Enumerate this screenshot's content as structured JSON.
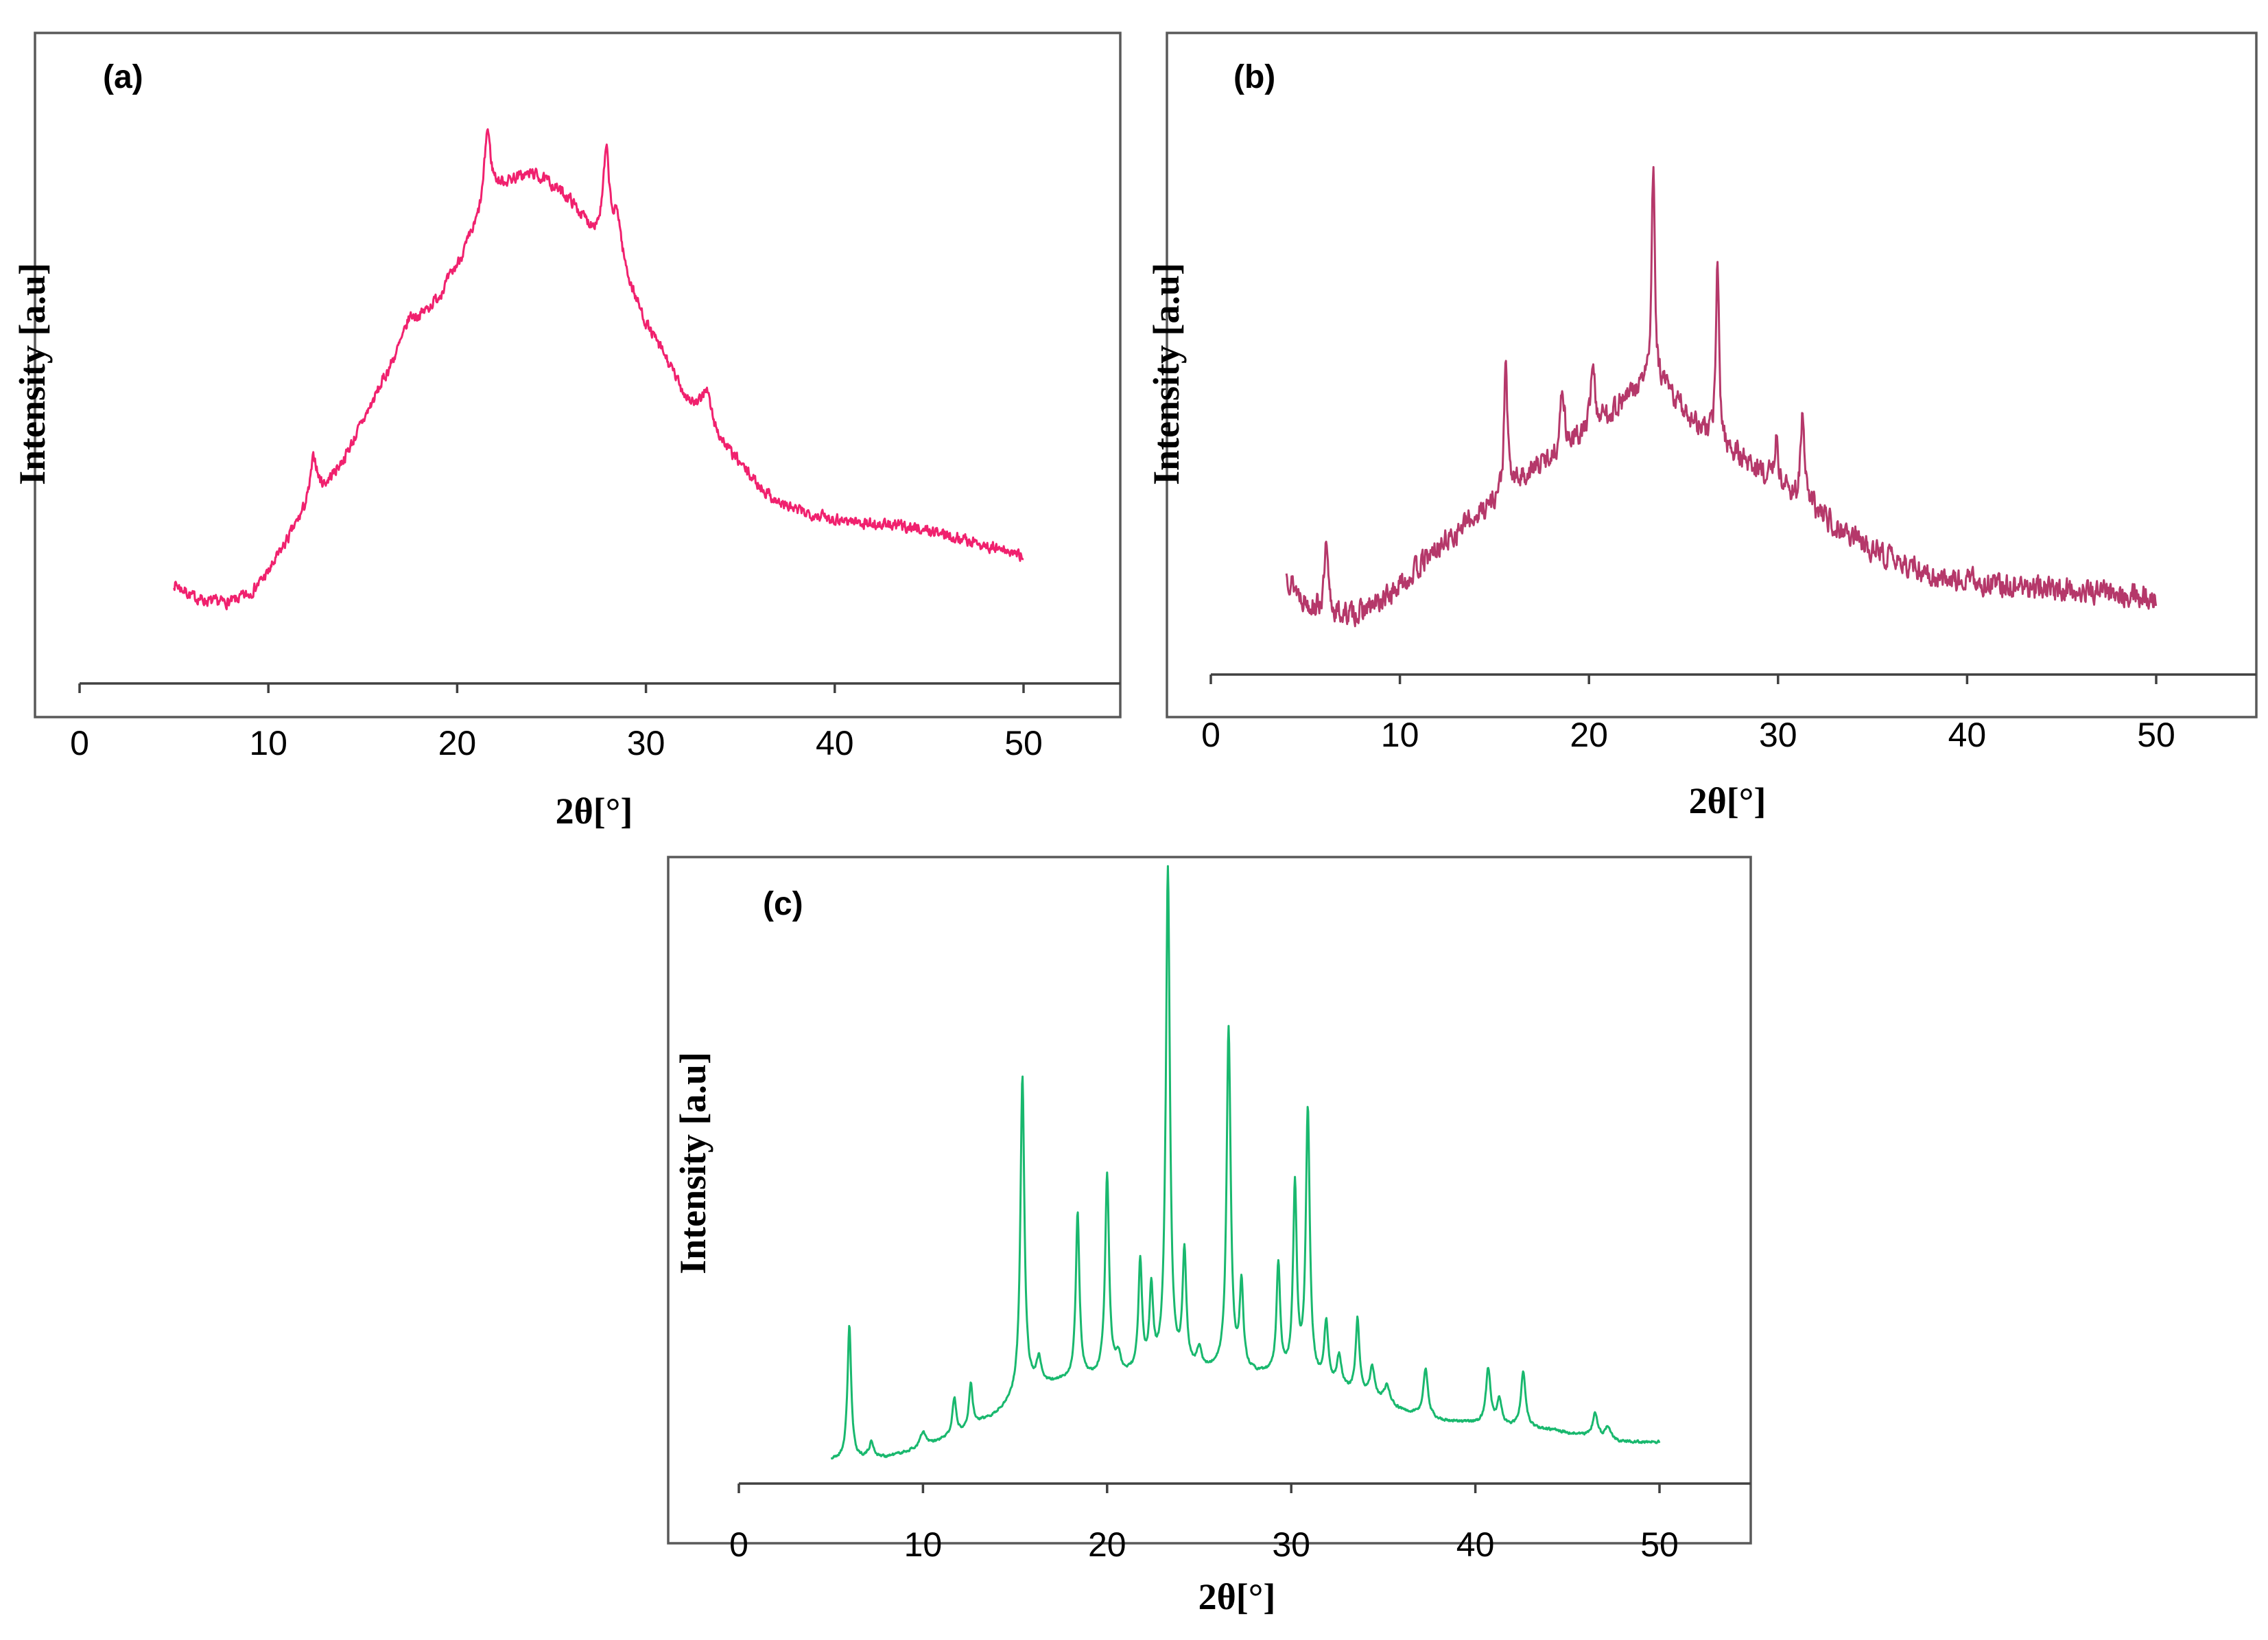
{
  "chart_data": [
    {
      "type": "line",
      "panel_label": "(a)",
      "color": "#F0216E",
      "xlabel": "2θ[°]",
      "ylabel": "Intensity [a.u]",
      "xlim": [
        0,
        55
      ],
      "ylim": [
        0,
        100
      ],
      "x_ticks": [
        "0",
        "10",
        "20",
        "30",
        "40",
        "50"
      ],
      "x_tick_values": [
        0,
        10,
        20,
        30,
        40,
        50
      ],
      "noise": 1.6,
      "seed": 7,
      "series": [
        {
          "name": "(a)",
          "points": [
            [
              5,
              14
            ],
            [
              6,
              11.5
            ],
            [
              7,
              10.5
            ],
            [
              8,
              10.5
            ],
            [
              9,
              12
            ],
            [
              10,
              16
            ],
            [
              11,
              22
            ],
            [
              12,
              28
            ],
            [
              12.5,
              31
            ],
            [
              13,
              32
            ],
            [
              14,
              37
            ],
            [
              15,
              44
            ],
            [
              16,
              51
            ],
            [
              17,
              58
            ],
            [
              18,
              63
            ],
            [
              19,
              67
            ],
            [
              20,
              73
            ],
            [
              21,
              80
            ],
            [
              22,
              87
            ],
            [
              23,
              89
            ],
            [
              24,
              90
            ],
            [
              25,
              88
            ],
            [
              26,
              85
            ],
            [
              27,
              80
            ],
            [
              28,
              77
            ],
            [
              29,
              70
            ],
            [
              30,
              62
            ],
            [
              31,
              56
            ],
            [
              32,
              49
            ],
            [
              33,
              44
            ],
            [
              34,
              40
            ],
            [
              35,
              36
            ],
            [
              36,
              32
            ],
            [
              37,
              29
            ],
            [
              38,
              27.5
            ],
            [
              40,
              26
            ],
            [
              42,
              25
            ],
            [
              44,
              24.5
            ],
            [
              46,
              23
            ],
            [
              48,
              21
            ],
            [
              50,
              19
            ]
          ]
        }
      ],
      "peaks": [
        [
          12.4,
          7,
          0.2
        ],
        [
          21.6,
          14,
          0.2
        ],
        [
          27.9,
          16,
          0.2
        ],
        [
          28.5,
          8,
          0.25
        ],
        [
          17.5,
          3,
          0.3
        ],
        [
          33.2,
          7,
          0.3
        ]
      ]
    },
    {
      "type": "line",
      "panel_label": "(b)",
      "color": "#B5386A",
      "xlabel": "2θ[°]",
      "ylabel": "Intensity [a.u]",
      "xlim": [
        0,
        55
      ],
      "ylim": [
        0,
        100
      ],
      "x_ticks": [
        "0",
        "10",
        "20",
        "30",
        "40",
        "50"
      ],
      "x_tick_values": [
        0,
        10,
        20,
        30,
        40,
        50
      ],
      "noise": 3.2,
      "seed": 13,
      "series": [
        {
          "name": "(b)",
          "points": [
            [
              4,
              15
            ],
            [
              5,
              10
            ],
            [
              6,
              8
            ],
            [
              7,
              7.5
            ],
            [
              8,
              8
            ],
            [
              9,
              10
            ],
            [
              10,
              13
            ],
            [
              12,
              20
            ],
            [
              14,
              26
            ],
            [
              16,
              32
            ],
            [
              18,
              37
            ],
            [
              20,
              42
            ],
            [
              22,
              48
            ],
            [
              23,
              51
            ],
            [
              24,
              50
            ],
            [
              25,
              46
            ],
            [
              26,
              42
            ],
            [
              28,
              37
            ],
            [
              30,
              32
            ],
            [
              32,
              27
            ],
            [
              34,
              22
            ],
            [
              36,
              18
            ],
            [
              38,
              15
            ],
            [
              40,
              14
            ],
            [
              42,
              13
            ],
            [
              44,
              12.5
            ],
            [
              46,
              12
            ],
            [
              48,
              11.5
            ],
            [
              50,
              11
            ]
          ]
        }
      ],
      "peaks": [
        [
          6.1,
          12,
          0.12
        ],
        [
          15.6,
          24,
          0.1
        ],
        [
          18.6,
          12,
          0.12
        ],
        [
          20.2,
          13,
          0.12
        ],
        [
          23.4,
          40,
          0.1
        ],
        [
          26.8,
          33,
          0.1
        ],
        [
          29.9,
          8,
          0.12
        ],
        [
          31.3,
          16,
          0.12
        ]
      ]
    },
    {
      "type": "line",
      "panel_label": "(c)",
      "color": "#19B86E",
      "xlabel": "2θ[°]",
      "ylabel": "Intensity [a.u]",
      "xlim": [
        0,
        55
      ],
      "ylim": [
        0,
        100
      ],
      "x_ticks": [
        "0",
        "10",
        "20",
        "30",
        "40",
        "50"
      ],
      "x_tick_values": [
        0,
        10,
        20,
        30,
        40,
        50
      ],
      "noise": 0.35,
      "seed": 21,
      "series": [
        {
          "name": "(c)",
          "points": [
            [
              5,
              3
            ],
            [
              6,
              3.2
            ],
            [
              8,
              3.5
            ],
            [
              10,
              5
            ],
            [
              12,
              7.5
            ],
            [
              14,
              10.5
            ],
            [
              15,
              13
            ],
            [
              16,
              15
            ],
            [
              18,
              16
            ],
            [
              20,
              16.5
            ],
            [
              22,
              17
            ],
            [
              24,
              17.5
            ],
            [
              26,
              17.5
            ],
            [
              28,
              17
            ],
            [
              30,
              16.5
            ],
            [
              32,
              15
            ],
            [
              34,
              13.5
            ],
            [
              36,
              11
            ],
            [
              38,
              9.5
            ],
            [
              40,
              9
            ],
            [
              42,
              8.5
            ],
            [
              44,
              8
            ],
            [
              46,
              7
            ],
            [
              48,
              6
            ],
            [
              50,
              6
            ]
          ]
        }
      ],
      "peaks": [
        [
          6.0,
          22,
          0.12
        ],
        [
          7.2,
          2.5,
          0.15
        ],
        [
          10.0,
          2.5,
          0.2
        ],
        [
          11.7,
          6,
          0.12
        ],
        [
          12.6,
          7,
          0.12
        ],
        [
          15.4,
          52,
          0.13
        ],
        [
          16.3,
          4,
          0.15
        ],
        [
          18.4,
          27,
          0.12
        ],
        [
          20.0,
          33,
          0.13
        ],
        [
          20.6,
          3,
          0.15
        ],
        [
          21.8,
          18,
          0.12
        ],
        [
          22.4,
          13,
          0.12
        ],
        [
          23.3,
          82,
          0.13
        ],
        [
          24.2,
          19,
          0.12
        ],
        [
          25.0,
          3,
          0.15
        ],
        [
          26.6,
          56,
          0.13
        ],
        [
          27.3,
          14,
          0.12
        ],
        [
          29.3,
          18,
          0.12
        ],
        [
          30.2,
          31,
          0.12
        ],
        [
          30.9,
          44,
          0.13
        ],
        [
          31.9,
          10,
          0.13
        ],
        [
          32.6,
          5,
          0.15
        ],
        [
          33.6,
          12,
          0.12
        ],
        [
          34.4,
          5,
          0.15
        ],
        [
          35.2,
          3,
          0.2
        ],
        [
          37.3,
          8,
          0.15
        ],
        [
          40.7,
          9,
          0.15
        ],
        [
          41.3,
          4,
          0.15
        ],
        [
          42.6,
          9,
          0.15
        ],
        [
          46.5,
          4,
          0.15
        ],
        [
          47.2,
          2,
          0.2
        ]
      ]
    }
  ]
}
